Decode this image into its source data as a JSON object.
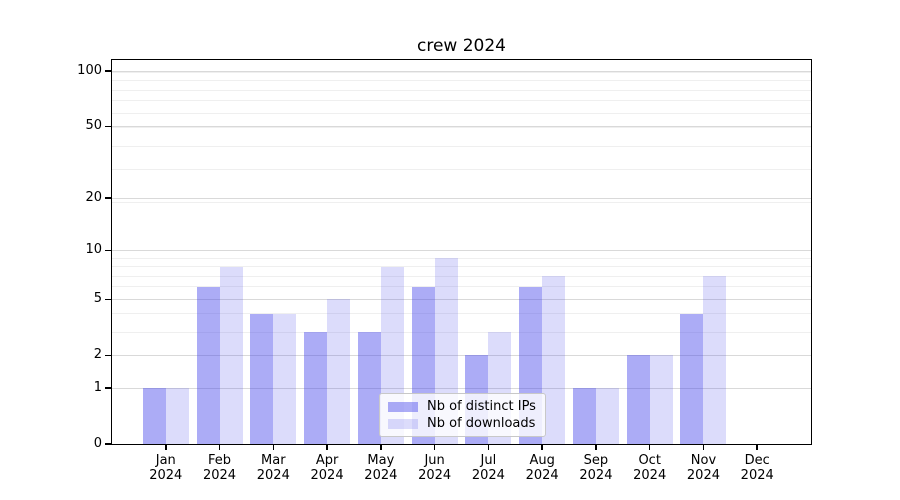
{
  "chart_data": {
    "type": "bar",
    "title": "crew 2024",
    "categories": [
      "Jan",
      "Feb",
      "Mar",
      "Apr",
      "May",
      "Jun",
      "Jul",
      "Aug",
      "Sep",
      "Oct",
      "Nov",
      "Dec"
    ],
    "year_label": "2024",
    "series": [
      {
        "name": "Nb of distinct IPs",
        "color": "rgba(70,70,235,0.45)",
        "values": [
          1,
          6,
          4,
          3,
          3,
          6,
          2,
          6,
          1,
          2,
          4,
          0
        ]
      },
      {
        "name": "Nb of downloads",
        "color": "rgba(70,70,235,0.19)",
        "values": [
          1,
          8,
          4,
          5,
          8,
          9,
          3,
          7,
          1,
          2,
          7,
          0
        ]
      }
    ],
    "yscale": "log10(1+value)",
    "yticks": [
      0,
      1,
      2,
      5,
      10,
      20,
      50,
      100
    ],
    "minor_grid_values": [
      2,
      3,
      4,
      5,
      6,
      7,
      8,
      9,
      19,
      29,
      39,
      49,
      59,
      69,
      79,
      89,
      99
    ],
    "ylim": [
      0,
      115
    ],
    "xlabel": "",
    "ylabel": "",
    "grid": true,
    "legend_position": "lower center"
  }
}
